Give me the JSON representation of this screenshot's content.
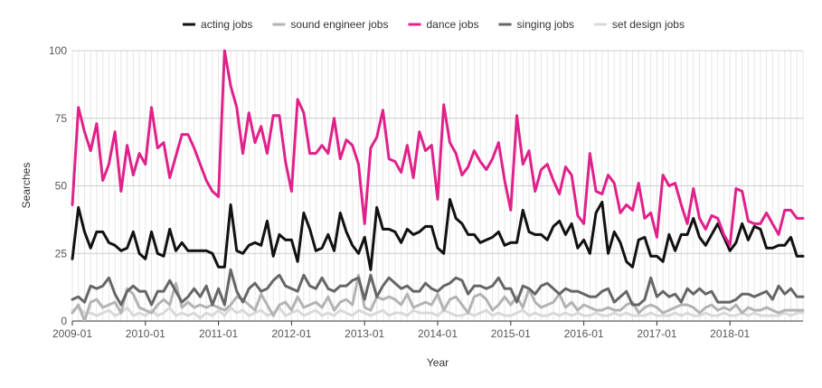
{
  "chart_data": {
    "type": "line",
    "title": "",
    "xlabel": "Year",
    "ylabel": "Searches",
    "ylim": [
      0,
      100
    ],
    "yticks": [
      0,
      25,
      50,
      75,
      100
    ],
    "x_start": "2009-01",
    "x_tick_labels": [
      "2009-01",
      "2010-01",
      "2011-01",
      "2012-01",
      "2013-01",
      "2014-01",
      "2015-01",
      "2016-01",
      "2017-01",
      "2018-01"
    ],
    "grid": true,
    "legend_position": "top",
    "series": [
      {
        "name": "acting jobs",
        "color": "#111111",
        "values": [
          23,
          42,
          33,
          27,
          33,
          33,
          29,
          28,
          26,
          27,
          33,
          25,
          23,
          33,
          25,
          24,
          34,
          26,
          29,
          26,
          26,
          26,
          26,
          25,
          20,
          20,
          43,
          26,
          25,
          28,
          29,
          28,
          37,
          24,
          32,
          30,
          30,
          22,
          40,
          34,
          26,
          27,
          32,
          26,
          40,
          33,
          28,
          25,
          31,
          19,
          42,
          34,
          34,
          33,
          29,
          34,
          32,
          33,
          35,
          35,
          27,
          25,
          45,
          38,
          36,
          32,
          32,
          29,
          30,
          31,
          33,
          28,
          29,
          29,
          41,
          33,
          32,
          32,
          30,
          35,
          37,
          32,
          36,
          27,
          30,
          25,
          40,
          44,
          25,
          33,
          29,
          22,
          20,
          30,
          31,
          24,
          24,
          22,
          32,
          26,
          32,
          32,
          38,
          31,
          28,
          32,
          36,
          31,
          26,
          29,
          36,
          30,
          35,
          34,
          27,
          27,
          28,
          28,
          31,
          24,
          24
        ]
      },
      {
        "name": "sound engineer jobs",
        "color": "#b3b3b3",
        "values": [
          3,
          6,
          0,
          7,
          8,
          5,
          6,
          7,
          3,
          12,
          10,
          5,
          4,
          3,
          6,
          8,
          6,
          14,
          5,
          7,
          5,
          6,
          5,
          6,
          5,
          4,
          6,
          9,
          8,
          6,
          4,
          10,
          6,
          2,
          6,
          7,
          4,
          9,
          5,
          6,
          7,
          5,
          9,
          4,
          7,
          8,
          6,
          17,
          5,
          4,
          9,
          8,
          9,
          8,
          6,
          10,
          5,
          6,
          7,
          6,
          10,
          4,
          8,
          9,
          6,
          3,
          9,
          10,
          8,
          4,
          6,
          9,
          6,
          9,
          5,
          12,
          7,
          5,
          6,
          7,
          10,
          5,
          7,
          4,
          6,
          5,
          4,
          4,
          5,
          4,
          4,
          6,
          7,
          3,
          5,
          6,
          5,
          3,
          4,
          5,
          6,
          6,
          5,
          3,
          5,
          6,
          4,
          5,
          4,
          6,
          3,
          5,
          4,
          4,
          5,
          4,
          3,
          4,
          4,
          4,
          4
        ]
      },
      {
        "name": "dance jobs",
        "color": "#e0218a",
        "values": [
          43,
          79,
          70,
          63,
          73,
          52,
          58,
          70,
          48,
          65,
          54,
          62,
          58,
          79,
          64,
          66,
          53,
          61,
          69,
          69,
          64,
          58,
          52,
          48,
          46,
          100,
          87,
          79,
          62,
          77,
          66,
          72,
          62,
          76,
          76,
          59,
          48,
          82,
          77,
          62,
          62,
          65,
          62,
          75,
          60,
          67,
          65,
          58,
          36,
          64,
          68,
          78,
          60,
          59,
          55,
          65,
          53,
          70,
          63,
          65,
          45,
          80,
          66,
          62,
          54,
          57,
          63,
          59,
          56,
          60,
          66,
          52,
          41,
          76,
          58,
          63,
          48,
          56,
          58,
          52,
          47,
          57,
          54,
          39,
          36,
          62,
          48,
          47,
          54,
          51,
          40,
          43,
          41,
          51,
          38,
          40,
          31,
          54,
          50,
          51,
          43,
          36,
          49,
          38,
          34,
          39,
          38,
          32,
          28,
          49,
          48,
          37,
          36,
          36,
          40,
          36,
          32,
          41,
          41,
          38,
          38
        ]
      },
      {
        "name": "singing jobs",
        "color": "#666666",
        "values": [
          8,
          9,
          7,
          13,
          12,
          13,
          16,
          10,
          6,
          11,
          13,
          11,
          11,
          6,
          11,
          11,
          15,
          11,
          7,
          9,
          12,
          9,
          13,
          6,
          12,
          6,
          19,
          11,
          7,
          12,
          14,
          11,
          12,
          15,
          17,
          13,
          12,
          11,
          17,
          13,
          12,
          16,
          12,
          11,
          13,
          13,
          15,
          16,
          8,
          17,
          9,
          13,
          16,
          14,
          12,
          13,
          11,
          11,
          14,
          12,
          11,
          13,
          14,
          16,
          15,
          10,
          13,
          13,
          12,
          13,
          16,
          12,
          12,
          7,
          13,
          12,
          10,
          13,
          14,
          12,
          10,
          12,
          11,
          11,
          10,
          9,
          9,
          11,
          12,
          7,
          9,
          11,
          6,
          6,
          8,
          16,
          9,
          11,
          9,
          10,
          7,
          12,
          10,
          12,
          10,
          11,
          7,
          7,
          7,
          8,
          10,
          10,
          9,
          10,
          11,
          8,
          13,
          10,
          12,
          9,
          9
        ]
      },
      {
        "name": "set design jobs",
        "color": "#d9d9d9",
        "values": [
          4,
          5,
          3,
          3,
          2,
          3,
          4,
          2,
          3,
          5,
          2,
          3,
          2,
          4,
          2,
          3,
          5,
          2,
          3,
          2,
          3,
          1,
          3,
          2,
          4,
          2,
          5,
          3,
          4,
          2,
          3,
          4,
          2,
          3,
          5,
          2,
          3,
          4,
          2,
          3,
          4,
          2,
          3,
          2,
          4,
          3,
          2,
          4,
          3,
          2,
          3,
          4,
          2,
          3,
          3,
          2,
          4,
          3,
          3,
          3,
          2,
          4,
          3,
          2,
          2,
          3,
          2,
          3,
          4,
          2,
          3,
          2,
          2,
          3,
          4,
          2,
          3,
          2,
          2,
          3,
          2,
          3,
          2,
          3,
          2,
          2,
          3,
          2,
          2,
          3,
          2,
          3,
          2,
          2,
          2,
          3,
          2,
          2,
          2,
          3,
          2,
          3,
          2,
          2,
          3,
          2,
          2,
          3,
          2,
          2,
          3,
          2,
          3,
          2,
          2,
          2,
          2,
          3,
          2,
          3,
          3
        ]
      }
    ]
  }
}
